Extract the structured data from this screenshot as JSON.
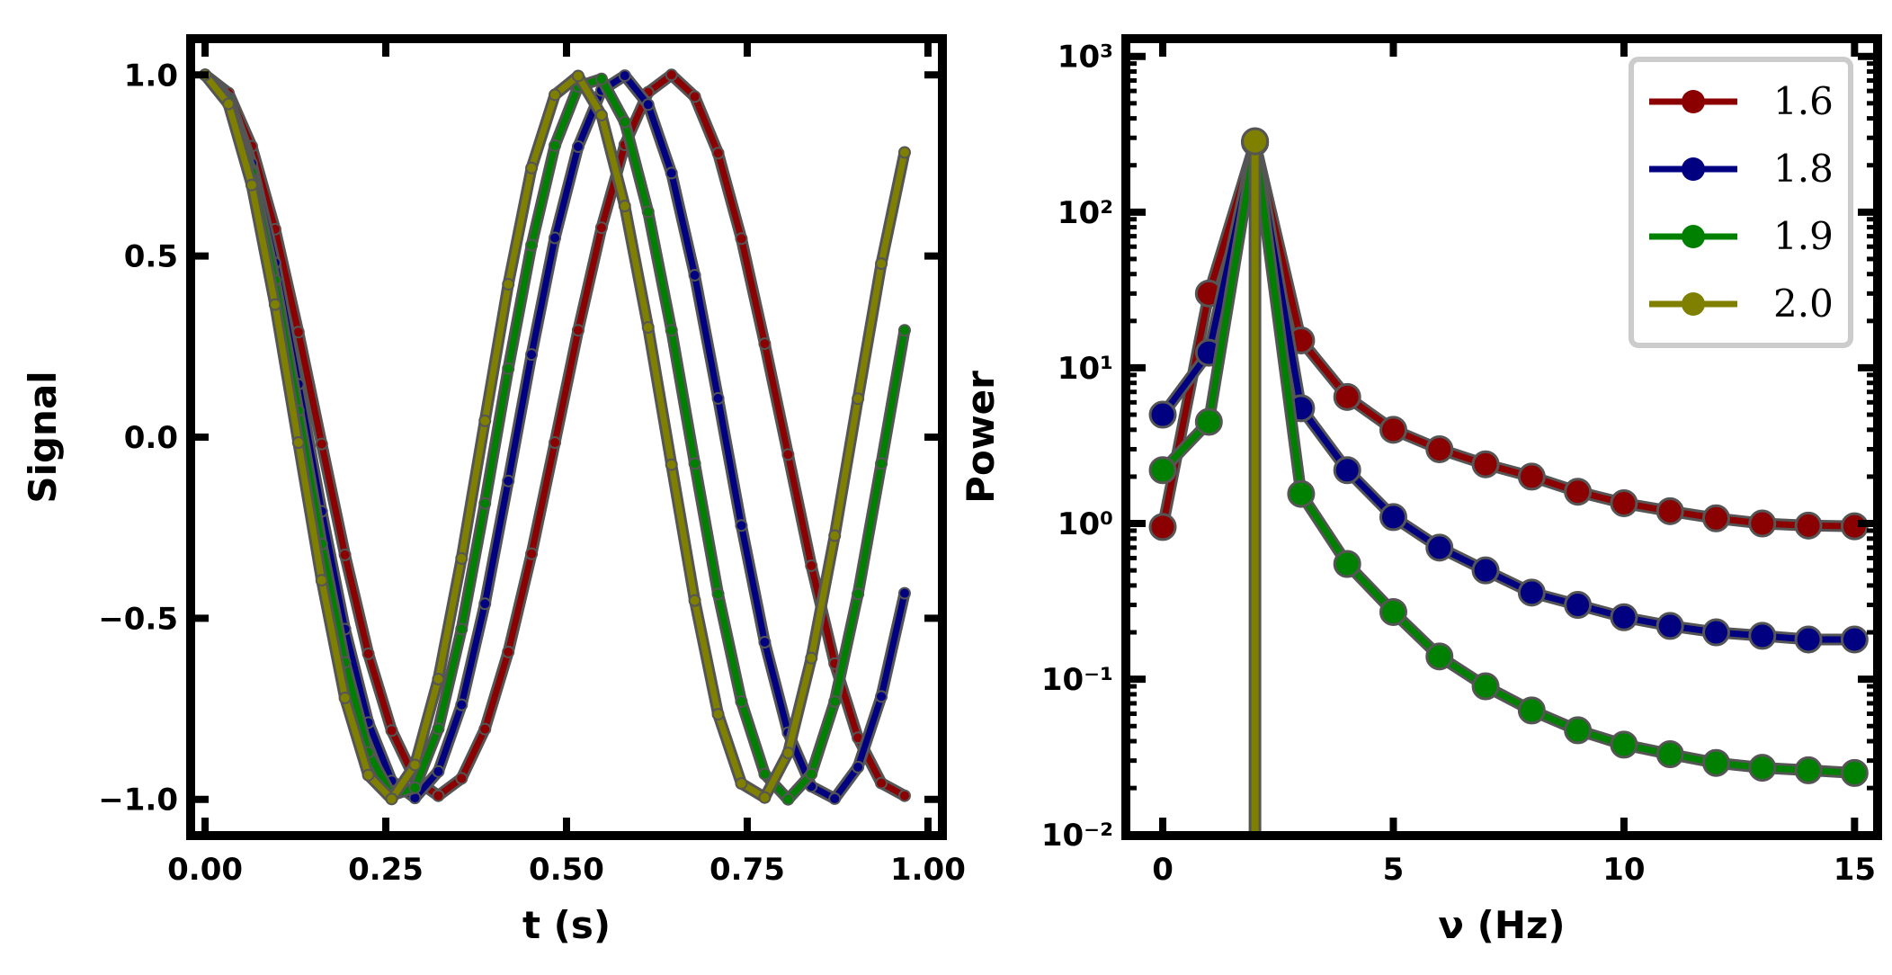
{
  "chart_data": [
    {
      "type": "line",
      "xlabel": "t (s)",
      "ylabel": "Signal",
      "xlim": [
        -0.02,
        1.02
      ],
      "ylim": [
        -1.1,
        1.1
      ],
      "x_ticks": [
        0.0,
        0.25,
        0.5,
        0.75,
        1.0
      ],
      "x_tick_labels": [
        "0.00",
        "0.25",
        "0.50",
        "0.75",
        "1.00"
      ],
      "y_ticks": [
        1.0,
        0.5,
        0.0,
        -0.5,
        -1.0
      ],
      "y_tick_labels": [
        "1.0",
        "0.5",
        "0.0",
        "−0.5",
        "−1.0"
      ],
      "x": [
        0.0,
        0.0323,
        0.0645,
        0.0968,
        0.129,
        0.1613,
        0.1935,
        0.2258,
        0.2581,
        0.2903,
        0.3226,
        0.3548,
        0.3871,
        0.4194,
        0.4516,
        0.4839,
        0.5161,
        0.5484,
        0.5806,
        0.6129,
        0.6452,
        0.6774,
        0.7097,
        0.7419,
        0.7742,
        0.8065,
        0.8387,
        0.871,
        0.9032,
        0.9355,
        0.9677
      ],
      "series": [
        {
          "name": "1.6",
          "color": "#8b0000",
          "values": [
            1.0,
            0.95,
            0.803,
            0.574,
            0.29,
            -0.019,
            -0.325,
            -0.598,
            -0.81,
            -0.944,
            -0.99,
            -0.942,
            -0.806,
            -0.593,
            -0.322,
            -0.015,
            0.295,
            0.578,
            0.807,
            0.952,
            1.0,
            0.94,
            0.784,
            0.548,
            0.258,
            -0.048,
            -0.355,
            -0.625,
            -0.83,
            -0.955,
            -0.99
          ]
        },
        {
          "name": "1.8",
          "color": "#000080",
          "values": [
            1.0,
            0.937,
            0.756,
            0.481,
            0.146,
            -0.205,
            -0.53,
            -0.788,
            -0.949,
            -0.996,
            -0.923,
            -0.739,
            -0.46,
            -0.121,
            0.228,
            0.55,
            0.802,
            0.957,
            0.998,
            0.918,
            0.729,
            0.447,
            0.107,
            -0.244,
            -0.566,
            -0.816,
            -0.964,
            -0.998,
            -0.911,
            -0.716,
            -0.431
          ]
        },
        {
          "name": "1.9",
          "color": "#008000",
          "values": [
            1.0,
            0.93,
            0.73,
            0.433,
            0.073,
            -0.295,
            -0.622,
            -0.87,
            -0.989,
            -0.968,
            -0.805,
            -0.53,
            -0.183,
            0.189,
            0.53,
            0.805,
            0.968,
            0.989,
            0.87,
            0.622,
            0.295,
            -0.073,
            -0.433,
            -0.73,
            -0.93,
            -1.0,
            -0.93,
            -0.73,
            -0.433,
            -0.073,
            0.295
          ]
        },
        {
          "name": "2.0",
          "color": "#808000",
          "values": [
            1.0,
            0.92,
            0.696,
            0.366,
            -0.015,
            -0.395,
            -0.72,
            -0.933,
            -0.999,
            -0.905,
            -0.668,
            -0.335,
            0.045,
            0.422,
            0.743,
            0.945,
            0.997,
            0.889,
            0.638,
            0.303,
            -0.076,
            -0.451,
            -0.765,
            -0.956,
            -0.995,
            -0.872,
            -0.61,
            -0.272,
            0.106,
            0.479,
            0.786
          ]
        }
      ]
    },
    {
      "type": "line",
      "xlabel": "ν (Hz)",
      "ylabel": "Power",
      "yscale": "log",
      "xlim": [
        -0.8,
        15.5
      ],
      "ylim": [
        0.0099,
        1300
      ],
      "x_ticks": [
        0,
        5,
        10,
        15
      ],
      "x_tick_labels": [
        "0",
        "5",
        "10",
        "15"
      ],
      "y_ticks": [
        0.01,
        0.1,
        1,
        10,
        100,
        1000
      ],
      "y_tick_labels": [
        "10⁻²",
        "10⁻¹",
        "10⁰",
        "10¹",
        "10²",
        "10³"
      ],
      "legend_location": "upper right",
      "x": [
        0,
        1,
        2,
        3,
        4,
        5,
        6,
        7,
        8,
        9,
        10,
        11,
        12,
        13,
        14,
        15
      ],
      "series": [
        {
          "name": "1.6",
          "color": "#8b0000",
          "values": [
            0.95,
            30,
            280,
            15,
            6.5,
            4.0,
            3.0,
            2.4,
            2.0,
            1.6,
            1.35,
            1.2,
            1.08,
            1.0,
            0.97,
            0.96
          ]
        },
        {
          "name": "1.8",
          "color": "#000080",
          "values": [
            5.0,
            12.5,
            285,
            5.5,
            2.2,
            1.1,
            0.7,
            0.5,
            0.36,
            0.3,
            0.25,
            0.22,
            0.2,
            0.19,
            0.18,
            0.18
          ]
        },
        {
          "name": "1.9",
          "color": "#008000",
          "values": [
            2.2,
            4.5,
            280,
            1.55,
            0.55,
            0.27,
            0.14,
            0.09,
            0.063,
            0.047,
            0.038,
            0.033,
            0.029,
            0.027,
            0.026,
            0.025
          ]
        },
        {
          "name": "2.0",
          "color": "#808000",
          "values": [
            null,
            null,
            285,
            null,
            null,
            null,
            null,
            null,
            null,
            null,
            null,
            null,
            null,
            null,
            null,
            null
          ]
        }
      ]
    }
  ]
}
